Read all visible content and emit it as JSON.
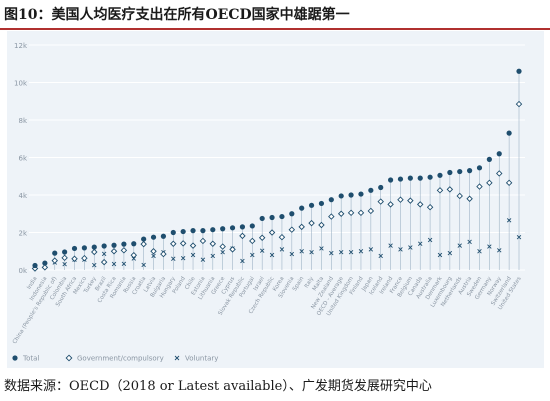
{
  "header": {
    "title": "图10：美国人均医疗支出在所有OECD国家中雄踞第一"
  },
  "footer": {
    "source": "数据来源：OECD（2018 or Latest available）、广发期货发展研究中心"
  },
  "colors": {
    "accent_rule": "#b0302f",
    "panel_bg": "#eef3f8",
    "total": "#1f4e6e",
    "government": "#1f4e6e",
    "voluntary": "#1f4e6e",
    "stem": "#9fb4c6",
    "grid": "#ffffff",
    "tick_text": "#8a96a3"
  },
  "chart_data": {
    "type": "scatter",
    "ylim": [
      0,
      12000
    ],
    "yticks": [
      0,
      2000,
      4000,
      6000,
      8000,
      10000,
      12000
    ],
    "ytick_labels": [
      "0k",
      "2k",
      "4k",
      "6k",
      "8k",
      "10k",
      "12k"
    ],
    "grid": true,
    "legend_position": "bottom-left",
    "categories": [
      "India",
      "Indonesia",
      "China (People's Republic of)",
      "Colombia",
      "South Africa",
      "Mexico",
      "Turkey",
      "Brazil",
      "Costa Rica",
      "Romania",
      "Russia",
      "Croatia",
      "Latvia",
      "Bulgaria",
      "Hungary",
      "Poland",
      "Chile",
      "Estonia",
      "Lithuania",
      "Greece",
      "Cyprus",
      "Slovak Republic",
      "Portugal",
      "Israel",
      "Czech Republic",
      "Korea",
      "Slovenia",
      "Spain",
      "Italy",
      "Malta",
      "New Zealand",
      "OECD - Average",
      "United Kingdom",
      "Finland",
      "Japan",
      "Iceland",
      "Ireland",
      "France",
      "Belgium",
      "Canada",
      "Australia",
      "Denmark",
      "Luxembourg",
      "Netherlands",
      "Austria",
      "Sweden",
      "Germany",
      "Norway",
      "Switzerland",
      "United States"
    ],
    "series": [
      {
        "name": "Total",
        "marker": "filled-circle",
        "values": [
          240,
          370,
          900,
          960,
          1150,
          1180,
          1220,
          1280,
          1320,
          1380,
          1400,
          1650,
          1750,
          1800,
          2000,
          2050,
          2100,
          2100,
          2150,
          2200,
          2250,
          2300,
          2350,
          2750,
          2800,
          2850,
          3000,
          3300,
          3450,
          3550,
          3750,
          3950,
          4000,
          4050,
          4250,
          4400,
          4800,
          4850,
          4900,
          4900,
          4950,
          5050,
          5200,
          5250,
          5300,
          5450,
          5900,
          6200,
          7300,
          10600
        ]
      },
      {
        "name": "Government/compulsory",
        "marker": "open-diamond",
        "values": [
          80,
          140,
          500,
          650,
          600,
          630,
          960,
          420,
          1000,
          1050,
          790,
          1380,
          1000,
          850,
          1400,
          1420,
          1300,
          1550,
          1400,
          1250,
          1100,
          1820,
          1550,
          1720,
          2000,
          1750,
          2150,
          2300,
          2500,
          2400,
          2850,
          3000,
          3050,
          3050,
          3150,
          3650,
          3500,
          3750,
          3700,
          3500,
          3350,
          4250,
          4300,
          3950,
          3800,
          4450,
          4650,
          5150,
          4650,
          8850
        ]
      },
      {
        "name": "Voluntary",
        "marker": "x",
        "values": [
          160,
          230,
          400,
          310,
          550,
          550,
          260,
          860,
          320,
          330,
          610,
          270,
          750,
          950,
          600,
          630,
          800,
          550,
          750,
          950,
          1150,
          480,
          800,
          1030,
          800,
          1100,
          850,
          1000,
          950,
          1150,
          900,
          950,
          950,
          1000,
          1100,
          750,
          1300,
          1100,
          1200,
          1400,
          1600,
          800,
          900,
          1300,
          1500,
          1000,
          1250,
          1050,
          2650,
          1750
        ]
      }
    ],
    "legend": [
      "Total",
      "Government/compulsory",
      "Voluntary"
    ]
  }
}
